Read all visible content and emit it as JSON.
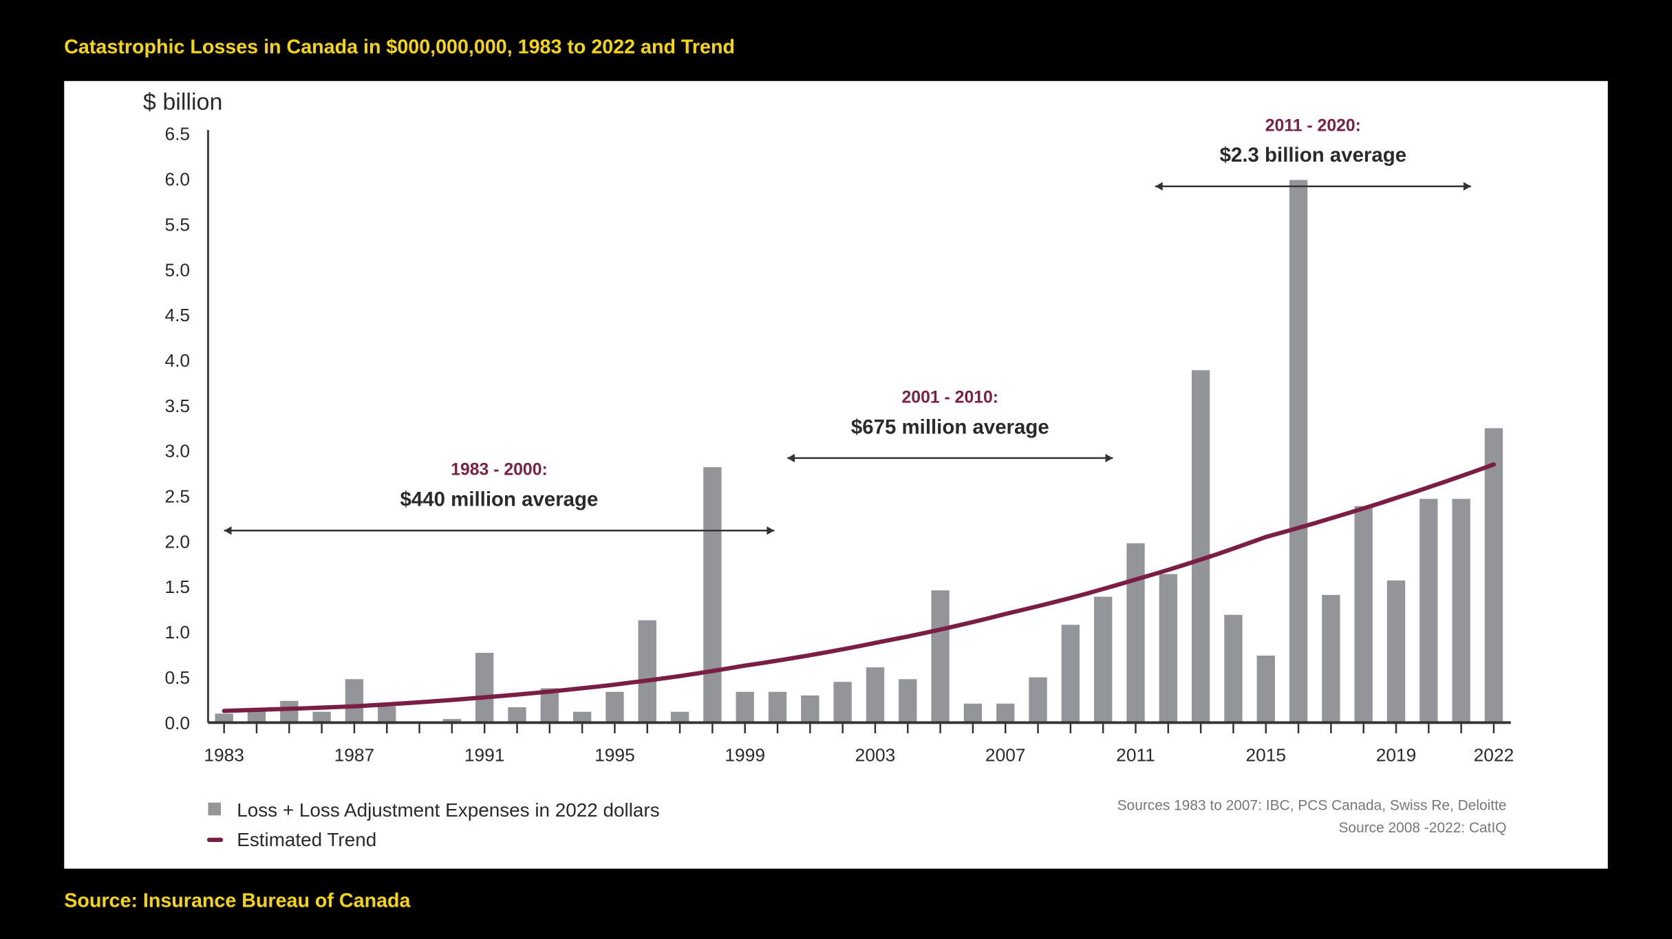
{
  "title": "Catastrophic Losses in Canada in $000,000,000, 1983 to 2022 and Trend",
  "source": "Source: Insurance Bureau of Canada",
  "colors": {
    "background": "#000000",
    "title": "#F7D700",
    "bar": "#939598",
    "trend": "#7B1E45",
    "panel": "#FFFFFF"
  },
  "chart_data": {
    "type": "bar",
    "ylabel": "$ billion",
    "ylim": [
      0,
      6.5
    ],
    "yticks": [
      "0.0",
      "0.5",
      "1.0",
      "1.5",
      "2.0",
      "2.5",
      "3.0",
      "3.5",
      "4.0",
      "4.5",
      "5.0",
      "5.5",
      "6.0",
      "6.5"
    ],
    "xtick_labels": [
      "1983",
      "1987",
      "1991",
      "1995",
      "1999",
      "2003",
      "2007",
      "2011",
      "2015",
      "2019",
      "2022"
    ],
    "grid": false,
    "legend_position": "bottom-left",
    "categories": [
      1983,
      1984,
      1985,
      1986,
      1987,
      1988,
      1989,
      1990,
      1991,
      1992,
      1993,
      1994,
      1995,
      1996,
      1997,
      1998,
      1999,
      2000,
      2001,
      2002,
      2003,
      2004,
      2005,
      2006,
      2007,
      2008,
      2009,
      2010,
      2011,
      2012,
      2013,
      2014,
      2015,
      2016,
      2017,
      2018,
      2019,
      2020,
      2021,
      2022
    ],
    "series": [
      {
        "name": "Loss + Loss Adjustment Expenses in 2022 dollars",
        "type": "bar",
        "values": [
          0.1,
          0.14,
          0.24,
          0.12,
          0.48,
          0.18,
          0.01,
          0.04,
          0.77,
          0.17,
          0.38,
          0.12,
          0.34,
          1.13,
          0.12,
          2.82,
          0.34,
          0.34,
          0.3,
          0.45,
          0.61,
          0.48,
          1.46,
          0.21,
          0.21,
          0.5,
          1.08,
          1.39,
          1.98,
          1.64,
          3.89,
          1.19,
          0.74,
          5.99,
          1.41,
          2.39,
          1.57,
          2.47,
          2.47,
          3.25
        ]
      },
      {
        "name": "Estimated Trend",
        "type": "line",
        "x": [
          1983,
          1987,
          1991,
          1995,
          1999,
          2003,
          2007,
          2011,
          2015,
          2019,
          2022
        ],
        "values": [
          0.13,
          0.18,
          0.28,
          0.42,
          0.63,
          0.88,
          1.2,
          1.58,
          2.05,
          2.48,
          2.85
        ]
      }
    ],
    "annotations": [
      {
        "period": "1983 - 2000:",
        "text": "$440 million average",
        "from": 1983,
        "to": 1999.9,
        "y": 2.12
      },
      {
        "period": "2001 - 2010:",
        "text": "$675 million average",
        "from": 2000.3,
        "to": 2010.3,
        "y": 2.92
      },
      {
        "period": "2011 - 2020:",
        "text": "$2.3 billion average",
        "from": 2011.6,
        "to": 2021.3,
        "y": 5.92
      }
    ],
    "sources": [
      "Sources 1983 to 2007: IBC, PCS Canada, Swiss Re, Deloitte",
      "Source 2008 -2022: CatIQ"
    ]
  }
}
